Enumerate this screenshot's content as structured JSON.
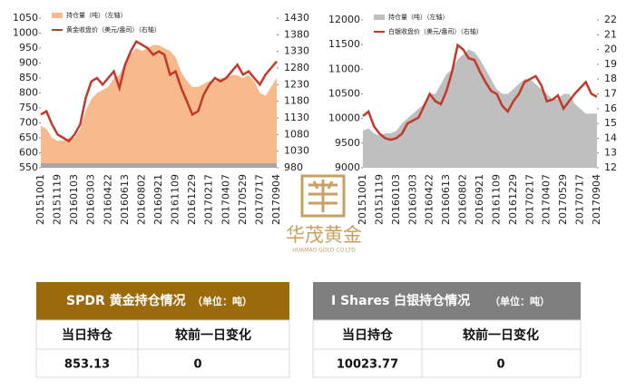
{
  "chart_data": [
    {
      "type": "combo",
      "categories": [
        "20151001",
        null,
        null,
        "20151119",
        null,
        null,
        "20160103",
        null,
        null,
        "20160303",
        null,
        null,
        "20160422",
        null,
        null,
        "20160613",
        null,
        null,
        "20160802",
        null,
        null,
        "20160921",
        null,
        null,
        "20161109",
        null,
        null,
        "20161229",
        null,
        null,
        "20170217",
        null,
        null,
        "20170407",
        null,
        null,
        "20170529",
        null,
        null,
        "20170717",
        null,
        null,
        "20170904"
      ],
      "series": [
        {
          "name": "持仓量（吨）（左轴）",
          "type": "area",
          "color": "#f8b98c",
          "values": [
            690,
            680,
            650,
            640,
            640,
            650,
            650,
            680,
            740,
            780,
            800,
            810,
            820,
            850,
            860,
            900,
            930,
            950,
            940,
            950,
            960,
            960,
            950,
            940,
            920,
            870,
            840,
            820,
            820,
            830,
            840,
            840,
            850,
            850,
            860,
            860,
            850,
            860,
            840,
            800,
            790,
            820,
            850
          ]
        },
        {
          "name": "黄金收盘价（美元/盎司）（右轴）",
          "type": "line",
          "axis": "y2",
          "color": "#c0392b",
          "values": [
            1140,
            1150,
            1110,
            1080,
            1070,
            1060,
            1080,
            1110,
            1190,
            1240,
            1250,
            1230,
            1250,
            1270,
            1220,
            1290,
            1330,
            1360,
            1350,
            1340,
            1320,
            1330,
            1320,
            1260,
            1270,
            1220,
            1180,
            1140,
            1150,
            1200,
            1230,
            1250,
            1240,
            1250,
            1270,
            1290,
            1260,
            1270,
            1250,
            1230,
            1260,
            1280,
            1300
          ]
        }
      ],
      "ylim": [
        550,
        1050
      ],
      "yticks": [
        550,
        600,
        650,
        700,
        750,
        800,
        850,
        900,
        950,
        1000,
        1050
      ],
      "y2lim": [
        980,
        1430
      ],
      "y2ticks": [
        980,
        1030,
        1080,
        1130,
        1180,
        1230,
        1280,
        1330,
        1380,
        1430
      ],
      "legend": "upper left",
      "grid": false
    },
    {
      "type": "combo",
      "categories": [
        "20151001",
        null,
        null,
        "20151119",
        null,
        null,
        "20160103",
        null,
        null,
        "20160303",
        null,
        null,
        "20160422",
        null,
        null,
        "20160613",
        null,
        null,
        "20160802",
        null,
        null,
        "20160921",
        null,
        null,
        "20161109",
        null,
        null,
        "20161229",
        null,
        null,
        "20170217",
        null,
        null,
        "20170407",
        null,
        null,
        "20170529",
        null,
        null,
        "20170717",
        null,
        null,
        "20170904"
      ],
      "series": [
        {
          "name": "持仓量（吨）（左轴）",
          "type": "area",
          "color": "#bfbfbf",
          "values": [
            9750,
            9800,
            9700,
            9650,
            9700,
            9700,
            9750,
            9900,
            10000,
            10100,
            10200,
            10300,
            10500,
            10500,
            10700,
            10900,
            11000,
            11200,
            11300,
            11400,
            11350,
            11200,
            11000,
            10800,
            10600,
            10500,
            10500,
            10600,
            10700,
            10800,
            10800,
            10700,
            10600,
            10500,
            10400,
            10400,
            10500,
            10500,
            10300,
            10200,
            10100,
            10100,
            10100
          ]
        },
        {
          "name": "白银收盘价（美元/盎司）（右轴）",
          "type": "line",
          "axis": "y2",
          "color": "#c0392b",
          "values": [
            15.5,
            15.8,
            14.8,
            14.3,
            14.0,
            13.9,
            14.0,
            14.3,
            15.0,
            15.2,
            15.4,
            16.2,
            17.0,
            16.5,
            16.3,
            17.2,
            18.5,
            20.3,
            20.0,
            19.4,
            19.3,
            18.5,
            17.8,
            17.2,
            17.0,
            16.2,
            15.8,
            16.5,
            17.0,
            17.8,
            18.0,
            18.2,
            17.6,
            16.5,
            16.6,
            16.9,
            16.0,
            16.5,
            17.0,
            17.4,
            17.8,
            17.0,
            16.8
          ]
        }
      ],
      "ylim": [
        9000,
        12000
      ],
      "yticks": [
        9000,
        9500,
        10000,
        10500,
        11000,
        11500,
        12000
      ],
      "y2lim": [
        12,
        22
      ],
      "y2ticks": [
        12,
        13,
        14,
        15,
        16,
        17,
        18,
        19,
        20,
        21,
        22
      ],
      "legend": "upper left",
      "grid": false
    }
  ],
  "logo": {
    "name": "华茂黄金",
    "subtitle": "HUAMAO GOLD CO.LTD"
  },
  "tables": [
    {
      "title": "SPDR 黄金持仓情况",
      "unit": "（单位：吨）",
      "columns": [
        "当日持仓",
        "较前一日变化"
      ],
      "rows": [
        [
          "853.13",
          "0"
        ]
      ]
    },
    {
      "title": "I Shares 白银持仓情况",
      "unit": "（单位：吨）",
      "columns": [
        "当日持仓",
        "较前一日变化"
      ],
      "rows": [
        [
          "10023.77",
          "0"
        ]
      ]
    }
  ]
}
